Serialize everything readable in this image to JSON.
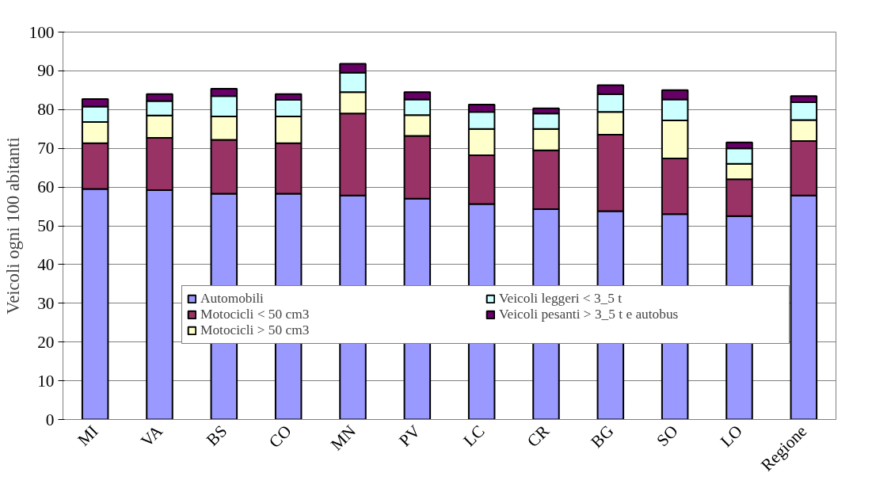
{
  "chart_data": {
    "type": "bar",
    "stacked": true,
    "ylabel": "Veicoli ogni 100 abitanti",
    "categories": [
      "MI",
      "VA",
      "BS",
      "CO",
      "MN",
      "PV",
      "LC",
      "CR",
      "BG",
      "SO",
      "LO",
      "Regione"
    ],
    "series": [
      {
        "name": "Automobili",
        "color": "#9999ff",
        "values": [
          59.5,
          59.2,
          58.3,
          58.3,
          57.8,
          57.0,
          55.6,
          54.3,
          53.8,
          53.0,
          52.5,
          57.8
        ]
      },
      {
        "name": "Motocicli < 50 cm3",
        "color": "#993366",
        "values": [
          11.8,
          13.5,
          13.9,
          13.0,
          21.2,
          16.2,
          12.6,
          15.2,
          19.7,
          14.4,
          9.5,
          14.1
        ]
      },
      {
        "name": "Motocicli > 50 cm3",
        "color": "#ffffcc",
        "values": [
          5.5,
          5.8,
          6.0,
          6.9,
          5.5,
          5.4,
          6.8,
          5.5,
          5.9,
          9.8,
          4.0,
          5.4
        ]
      },
      {
        "name": "Veicoli leggeri < 3_5 t",
        "color": "#ccffff",
        "values": [
          4.0,
          3.7,
          5.3,
          4.3,
          5.0,
          4.0,
          4.4,
          4.0,
          4.6,
          5.4,
          4.0,
          4.6
        ]
      },
      {
        "name": "Veicoli pesanti > 3_5 t e autobus",
        "color": "#660066",
        "values": [
          1.9,
          1.8,
          1.9,
          1.5,
          2.3,
          1.9,
          1.9,
          1.3,
          2.3,
          2.4,
          1.5,
          1.6
        ]
      }
    ],
    "ylim": [
      0,
      100
    ],
    "yticks": [
      0,
      10,
      20,
      30,
      40,
      50,
      60,
      70,
      80,
      90,
      100
    ],
    "grid": "y",
    "legend": "center"
  }
}
